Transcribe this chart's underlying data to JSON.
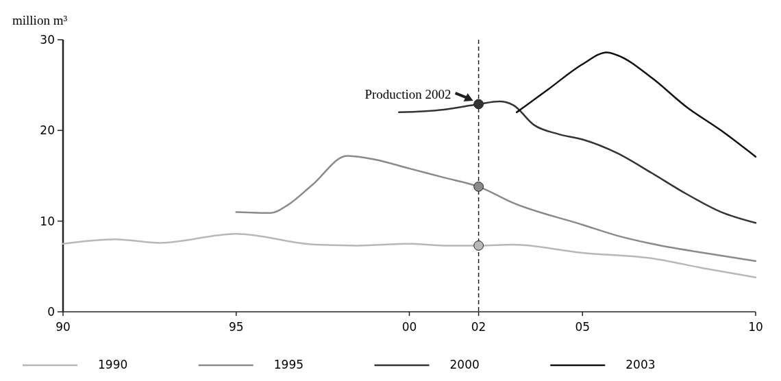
{
  "chart_data": {
    "type": "line",
    "ylabel": "million m³",
    "xlim": [
      1990,
      2010
    ],
    "ylim": [
      0,
      30
    ],
    "xticks": [
      {
        "value": 1990,
        "label": "90"
      },
      {
        "value": 1995,
        "label": "95"
      },
      {
        "value": 2000,
        "label": "00"
      },
      {
        "value": 2002,
        "label": "02"
      },
      {
        "value": 2005,
        "label": "05"
      },
      {
        "value": 2010,
        "label": "10"
      }
    ],
    "yticks": [
      0,
      10,
      20,
      30
    ],
    "grid": false,
    "legend": "bottom",
    "line_style": "solid",
    "series": [
      {
        "name": "1990",
        "color": "#b8b8b8",
        "x": [
          1990,
          1991.5,
          1992.8,
          1995,
          1997.3,
          1998.5,
          2000,
          2001,
          2002,
          2003,
          2005,
          2007,
          2008.5,
          2010
        ],
        "values": [
          7.5,
          8.0,
          7.6,
          8.6,
          7.4,
          7.3,
          7.5,
          7.3,
          7.3,
          7.4,
          6.5,
          5.9,
          4.8,
          3.8
        ]
      },
      {
        "name": "1995",
        "color": "#8a8a8a",
        "x": [
          1995,
          1996,
          1996.5,
          1997.2,
          1998.2,
          1999,
          2000,
          2001,
          2002,
          2003,
          2005,
          2006,
          2007,
          2008.5,
          2010
        ],
        "values": [
          11.0,
          10.9,
          11.8,
          14.0,
          17.2,
          16.8,
          15.8,
          14.8,
          13.8,
          12.0,
          9.6,
          8.4,
          7.5,
          6.5,
          5.6
        ]
      },
      {
        "name": "2000",
        "color": "#333333",
        "x": [
          1999.7,
          2001,
          2002,
          2002.6,
          2003,
          2003.6,
          2004.3,
          2005,
          2006,
          2007,
          2008,
          2009,
          2010
        ],
        "values": [
          22.0,
          22.3,
          22.9,
          23.2,
          22.8,
          20.6,
          19.6,
          19.0,
          17.5,
          15.3,
          13.0,
          11.0,
          9.8
        ]
      },
      {
        "name": "2003",
        "color": "#111111",
        "x": [
          2003.1,
          2004,
          2005,
          2005.7,
          2006,
          2007,
          2008,
          2009,
          2010
        ],
        "values": [
          22.0,
          24.5,
          27.3,
          28.6,
          28.3,
          25.8,
          22.6,
          20.0,
          17.1
        ]
      },
      {
        "type": "scatter",
        "marker": "circle",
        "x": [
          2002,
          2002,
          2002
        ],
        "values": [
          7.3,
          13.8,
          22.9
        ],
        "colors": [
          "#b8b8b8",
          "#8a8a8a",
          "#333333"
        ]
      }
    ],
    "ref_lines": [
      {
        "axis": "x",
        "value": 2002,
        "color": "#222222",
        "line_style": "dashed"
      }
    ],
    "annotations": [
      {
        "text": "Production 2002",
        "x": 2002,
        "y": 22.9
      }
    ]
  }
}
